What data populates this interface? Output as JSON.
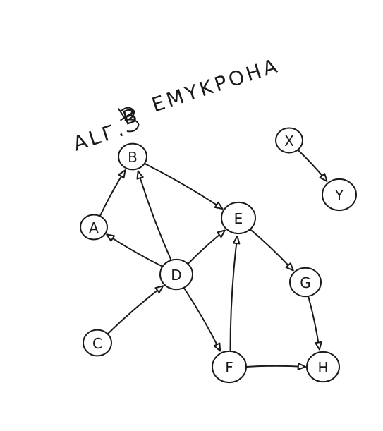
{
  "title": {
    "prefix": "ALГ.",
    "suffix": "EMYKPOHA",
    "smudge_glyph": "B"
  },
  "nodes": [
    {
      "id": "B",
      "label": "B"
    },
    {
      "id": "A",
      "label": "A"
    },
    {
      "id": "D",
      "label": "D"
    },
    {
      "id": "C",
      "label": "C"
    },
    {
      "id": "E",
      "label": "E"
    },
    {
      "id": "G",
      "label": "G"
    },
    {
      "id": "F",
      "label": "F"
    },
    {
      "id": "H",
      "label": "H"
    },
    {
      "id": "X",
      "label": "X"
    },
    {
      "id": "Y",
      "label": "Y"
    }
  ],
  "edges": [
    {
      "from": "A",
      "to": "B"
    },
    {
      "from": "D",
      "to": "B"
    },
    {
      "from": "D",
      "to": "A"
    },
    {
      "from": "C",
      "to": "D"
    },
    {
      "from": "D",
      "to": "E"
    },
    {
      "from": "D",
      "to": "F"
    },
    {
      "from": "B",
      "to": "E"
    },
    {
      "from": "F",
      "to": "E"
    },
    {
      "from": "E",
      "to": "G"
    },
    {
      "from": "G",
      "to": "H"
    },
    {
      "from": "F",
      "to": "H"
    },
    {
      "from": "X",
      "to": "Y"
    }
  ],
  "colors": {
    "ink": "#1a1a1a",
    "paper": "#ffffff"
  }
}
